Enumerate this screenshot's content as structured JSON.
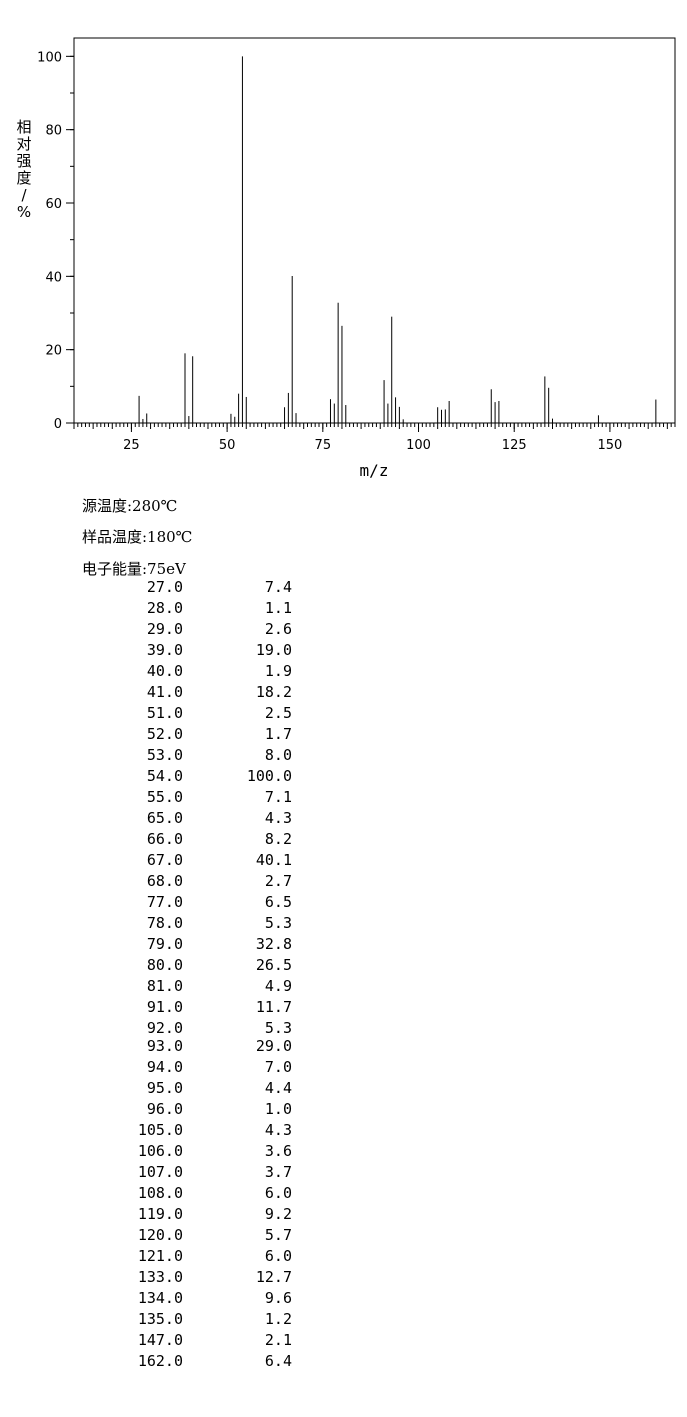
{
  "chart_data": {
    "type": "bar",
    "xlabel": "m/z",
    "ylabel": "相对强度/%",
    "xlim": [
      10,
      167
    ],
    "ylim": [
      0,
      105
    ],
    "x_ticks": [
      25,
      50,
      75,
      100,
      125,
      150
    ],
    "y_ticks": [
      0,
      20,
      40,
      60,
      80,
      100
    ],
    "grid": false,
    "peaks": [
      {
        "mz": 27.0,
        "intensity": 7.4
      },
      {
        "mz": 28.0,
        "intensity": 1.1
      },
      {
        "mz": 29.0,
        "intensity": 2.6
      },
      {
        "mz": 39.0,
        "intensity": 19.0
      },
      {
        "mz": 40.0,
        "intensity": 1.9
      },
      {
        "mz": 41.0,
        "intensity": 18.2
      },
      {
        "mz": 51.0,
        "intensity": 2.5
      },
      {
        "mz": 52.0,
        "intensity": 1.7
      },
      {
        "mz": 53.0,
        "intensity": 8.0
      },
      {
        "mz": 54.0,
        "intensity": 100.0
      },
      {
        "mz": 55.0,
        "intensity": 7.1
      },
      {
        "mz": 65.0,
        "intensity": 4.3
      },
      {
        "mz": 66.0,
        "intensity": 8.2
      },
      {
        "mz": 67.0,
        "intensity": 40.1
      },
      {
        "mz": 68.0,
        "intensity": 2.7
      },
      {
        "mz": 77.0,
        "intensity": 6.5
      },
      {
        "mz": 78.0,
        "intensity": 5.3
      },
      {
        "mz": 79.0,
        "intensity": 32.8
      },
      {
        "mz": 80.0,
        "intensity": 26.5
      },
      {
        "mz": 81.0,
        "intensity": 4.9
      },
      {
        "mz": 91.0,
        "intensity": 11.7
      },
      {
        "mz": 92.0,
        "intensity": 5.3
      },
      {
        "mz": 93.0,
        "intensity": 29.0
      },
      {
        "mz": 94.0,
        "intensity": 7.0
      },
      {
        "mz": 95.0,
        "intensity": 4.4
      },
      {
        "mz": 96.0,
        "intensity": 1.0
      },
      {
        "mz": 105.0,
        "intensity": 4.3
      },
      {
        "mz": 106.0,
        "intensity": 3.6
      },
      {
        "mz": 107.0,
        "intensity": 3.7
      },
      {
        "mz": 108.0,
        "intensity": 6.0
      },
      {
        "mz": 119.0,
        "intensity": 9.2
      },
      {
        "mz": 120.0,
        "intensity": 5.7
      },
      {
        "mz": 121.0,
        "intensity": 6.0
      },
      {
        "mz": 133.0,
        "intensity": 12.7
      },
      {
        "mz": 134.0,
        "intensity": 9.6
      },
      {
        "mz": 135.0,
        "intensity": 1.2
      },
      {
        "mz": 147.0,
        "intensity": 2.1
      },
      {
        "mz": 162.0,
        "intensity": 6.4
      }
    ]
  },
  "conditions": {
    "source_temp": "源温度:280℃",
    "sample_temp": "样品温度:180℃",
    "electron_energy": "电子能量:75eV"
  },
  "peak_table": [
    [
      "27.0",
      "7.4"
    ],
    [
      "28.0",
      "1.1"
    ],
    [
      "29.0",
      "2.6"
    ],
    [
      "39.0",
      "19.0"
    ],
    [
      "40.0",
      "1.9"
    ],
    [
      "41.0",
      "18.2"
    ],
    [
      "51.0",
      "2.5"
    ],
    [
      "52.0",
      "1.7"
    ],
    [
      "53.0",
      "8.0"
    ],
    [
      "54.0",
      "100.0"
    ],
    [
      "55.0",
      "7.1"
    ],
    [
      "65.0",
      "4.3"
    ],
    [
      "66.0",
      "8.2"
    ],
    [
      "67.0",
      "40.1"
    ],
    [
      "68.0",
      "2.7"
    ],
    [
      "77.0",
      "6.5"
    ],
    [
      "78.0",
      "5.3"
    ],
    [
      "79.0",
      "32.8"
    ],
    [
      "80.0",
      "26.5"
    ],
    [
      "81.0",
      "4.9"
    ],
    [
      "91.0",
      "11.7"
    ],
    [
      "92.0",
      "5.3"
    ],
    [
      "93.0",
      "29.0"
    ],
    [
      "94.0",
      "7.0"
    ],
    [
      "95.0",
      "4.4"
    ],
    [
      "96.0",
      "1.0"
    ],
    [
      "105.0",
      "4.3"
    ],
    [
      "106.0",
      "3.6"
    ],
    [
      "107.0",
      "3.7"
    ],
    [
      "108.0",
      "6.0"
    ],
    [
      "119.0",
      "9.2"
    ],
    [
      "120.0",
      "5.7"
    ],
    [
      "121.0",
      "6.0"
    ],
    [
      "133.0",
      "12.7"
    ],
    [
      "134.0",
      "9.6"
    ],
    [
      "135.0",
      "1.2"
    ],
    [
      "147.0",
      "2.1"
    ],
    [
      "162.0",
      "6.4"
    ]
  ]
}
